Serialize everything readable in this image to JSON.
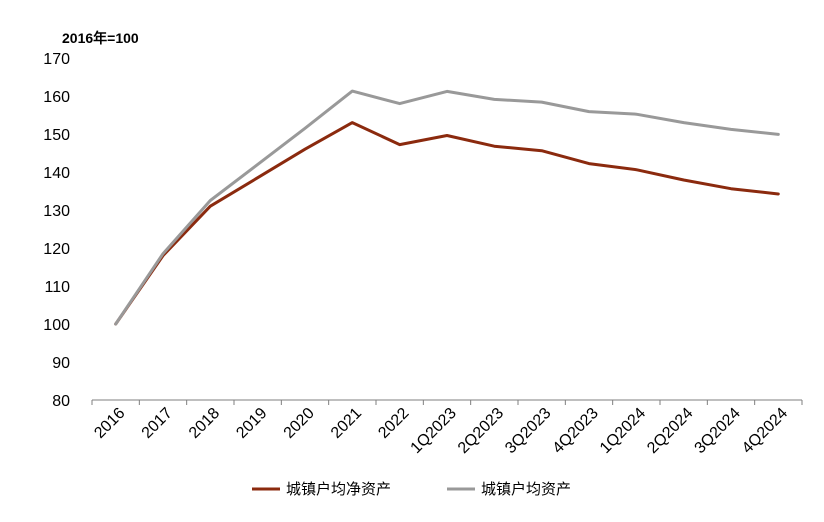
{
  "chart_data": {
    "type": "line",
    "unit_label": "2016年=100",
    "categories": [
      "2016",
      "2017",
      "2018",
      "2019",
      "2020",
      "2021",
      "2022",
      "1Q2023",
      "2Q2023",
      "3Q2023",
      "4Q2023",
      "1Q2024",
      "2Q2024",
      "3Q2024",
      "4Q2024"
    ],
    "ylim": [
      80,
      170
    ],
    "yticks": [
      80,
      90,
      100,
      110,
      120,
      130,
      140,
      150,
      160,
      170
    ],
    "grid": false,
    "legend_position": "bottom",
    "series": [
      {
        "name": "城镇户均净资产",
        "color": "#8B2A0E",
        "values": [
          100,
          118,
          131,
          138.5,
          146,
          153,
          147.2,
          149.6,
          146.8,
          145.6,
          142.2,
          140.6,
          137.9,
          135.6,
          134.2
        ]
      },
      {
        "name": "城镇户均资产",
        "color": "#999999",
        "values": [
          100,
          118.5,
          132.5,
          142,
          151.5,
          161.3,
          158,
          161.2,
          159.1,
          158.4,
          155.9,
          155.2,
          153,
          151.2,
          149.9
        ]
      }
    ]
  }
}
